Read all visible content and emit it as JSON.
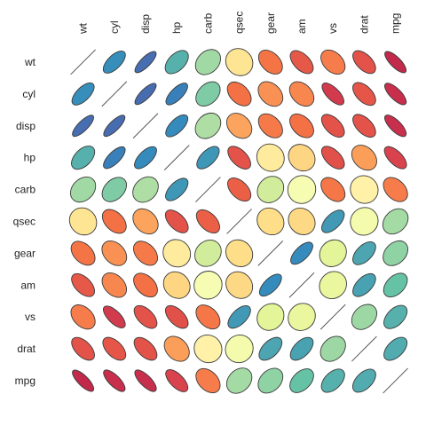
{
  "chart_data": {
    "type": "correlation-ellipse-matrix",
    "title": "",
    "variables": [
      "wt",
      "cyl",
      "disp",
      "hp",
      "carb",
      "qsec",
      "gear",
      "am",
      "vs",
      "drat",
      "mpg"
    ],
    "correlation_matrix": [
      [
        1.0,
        0.78,
        0.89,
        0.66,
        0.43,
        -0.17,
        -0.58,
        -0.69,
        -0.55,
        -0.71,
        -0.87
      ],
      [
        0.78,
        1.0,
        0.9,
        0.83,
        0.53,
        -0.59,
        -0.49,
        -0.52,
        -0.81,
        -0.7,
        -0.85
      ],
      [
        0.89,
        0.9,
        1.0,
        0.79,
        0.39,
        -0.43,
        -0.56,
        -0.59,
        -0.71,
        -0.71,
        -0.85
      ],
      [
        0.66,
        0.83,
        0.79,
        1.0,
        0.75,
        -0.71,
        -0.13,
        -0.24,
        -0.72,
        -0.45,
        -0.78
      ],
      [
        0.43,
        0.53,
        0.39,
        0.75,
        1.0,
        -0.66,
        0.27,
        0.06,
        -0.57,
        -0.09,
        -0.55
      ],
      [
        -0.17,
        -0.59,
        -0.43,
        -0.71,
        -0.66,
        1.0,
        -0.21,
        -0.23,
        0.74,
        0.09,
        0.42
      ],
      [
        -0.58,
        -0.49,
        -0.56,
        -0.13,
        0.27,
        -0.21,
        1.0,
        0.79,
        0.21,
        0.7,
        0.48
      ],
      [
        -0.69,
        -0.52,
        -0.59,
        -0.24,
        0.06,
        -0.23,
        0.79,
        1.0,
        0.17,
        0.71,
        0.6
      ],
      [
        -0.55,
        -0.81,
        -0.71,
        -0.72,
        -0.57,
        0.74,
        0.21,
        0.17,
        1.0,
        0.44,
        0.66
      ],
      [
        -0.71,
        -0.7,
        -0.71,
        -0.45,
        -0.09,
        0.09,
        0.7,
        0.71,
        0.44,
        1.0,
        0.68
      ],
      [
        -0.87,
        -0.85,
        -0.85,
        -0.78,
        -0.55,
        0.42,
        0.48,
        0.6,
        0.66,
        0.68,
        1.0
      ]
    ],
    "value_range": [
      -1,
      1
    ],
    "color_scale": [
      "#9e0142",
      "#d53e4f",
      "#f46d43",
      "#fdae61",
      "#fee08b",
      "#ffffbf",
      "#e6f598",
      "#abdda4",
      "#66c2a5",
      "#3288bd",
      "#5e4fa2"
    ],
    "diagonal": "line",
    "grid": false,
    "legend": "none"
  }
}
